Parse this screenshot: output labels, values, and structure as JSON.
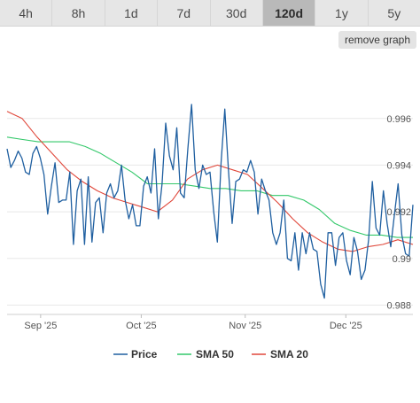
{
  "tabs": [
    {
      "label": "4h"
    },
    {
      "label": "8h"
    },
    {
      "label": "1d"
    },
    {
      "label": "7d"
    },
    {
      "label": "30d"
    },
    {
      "label": "120d",
      "active": true
    },
    {
      "label": "1y"
    },
    {
      "label": "5y"
    }
  ],
  "remove_button": {
    "label": "remove graph"
  },
  "chart_data": {
    "type": "line",
    "x_range": [
      "2025-08-22",
      "2025-12-21"
    ],
    "ylim": [
      0.9876,
      0.9988
    ],
    "y_ticks": [
      {
        "value": 0.988,
        "label": "0.988"
      },
      {
        "value": 0.99,
        "label": "0.99"
      },
      {
        "value": 0.992,
        "label": "0.992"
      },
      {
        "value": 0.994,
        "label": "0.994"
      },
      {
        "value": 0.996,
        "label": "0.996"
      }
    ],
    "x_ticks": [
      {
        "date": "2025-09-01",
        "label": "Sep '25"
      },
      {
        "date": "2025-10-01",
        "label": "Oct '25"
      },
      {
        "date": "2025-11-01",
        "label": "Nov '25"
      },
      {
        "date": "2025-12-01",
        "label": "Dec '25"
      }
    ],
    "grid": true,
    "legend_position": "bottom",
    "series": [
      {
        "name": "Price",
        "color": "#1f5fa0",
        "values": [
          0.9947,
          0.9939,
          0.9942,
          0.9946,
          0.9943,
          0.9937,
          0.9936,
          0.9945,
          0.9948,
          0.9943,
          0.9936,
          0.9919,
          0.9931,
          0.9941,
          0.9924,
          0.9925,
          0.9925,
          0.9937,
          0.9906,
          0.9929,
          0.9934,
          0.9906,
          0.9935,
          0.9907,
          0.9924,
          0.9926,
          0.9911,
          0.9928,
          0.9932,
          0.9926,
          0.9929,
          0.994,
          0.9925,
          0.9917,
          0.9923,
          0.9914,
          0.9914,
          0.9931,
          0.9935,
          0.9928,
          0.9947,
          0.9917,
          0.9932,
          0.9958,
          0.9944,
          0.9938,
          0.9956,
          0.9928,
          0.9926,
          0.9947,
          0.9966,
          0.9938,
          0.993,
          0.994,
          0.9936,
          0.9937,
          0.992,
          0.9907,
          0.9941,
          0.9964,
          0.9938,
          0.9915,
          0.9933,
          0.9934,
          0.9938,
          0.9937,
          0.9942,
          0.9937,
          0.9919,
          0.9934,
          0.9929,
          0.9925,
          0.9911,
          0.9906,
          0.9911,
          0.9925,
          0.99,
          0.9899,
          0.9911,
          0.9895,
          0.9911,
          0.9902,
          0.9911,
          0.9904,
          0.9903,
          0.9889,
          0.9883,
          0.9911,
          0.9911,
          0.9897,
          0.9909,
          0.9911,
          0.9899,
          0.9893,
          0.9909,
          0.9903,
          0.9891,
          0.9895,
          0.9908,
          0.9933,
          0.9913,
          0.991,
          0.9929,
          0.9915,
          0.9905,
          0.9919,
          0.9932,
          0.991,
          0.9902,
          0.9901,
          0.9923
        ]
      },
      {
        "name": "SMA 50",
        "color": "#33c86a",
        "values": [
          0.9952,
          0.9951,
          0.995,
          0.995,
          0.995,
          0.9948,
          0.9945,
          0.9941,
          0.9937,
          0.9932,
          0.9932,
          0.9932,
          0.9931,
          0.993,
          0.993,
          0.9929,
          0.9929,
          0.9927,
          0.9927,
          0.9925,
          0.9921,
          0.9915,
          0.9912,
          0.991,
          0.991,
          0.9909,
          0.9909
        ]
      },
      {
        "name": "SMA 20",
        "color": "#e0473a",
        "values": [
          0.9963,
          0.996,
          0.9952,
          0.9945,
          0.9938,
          0.9933,
          0.9929,
          0.9926,
          0.9924,
          0.9922,
          0.992,
          0.9925,
          0.9934,
          0.9938,
          0.994,
          0.9938,
          0.9936,
          0.993,
          0.9924,
          0.9917,
          0.9911,
          0.9907,
          0.9904,
          0.9903,
          0.9905,
          0.9906,
          0.9908,
          0.9906
        ]
      }
    ]
  }
}
